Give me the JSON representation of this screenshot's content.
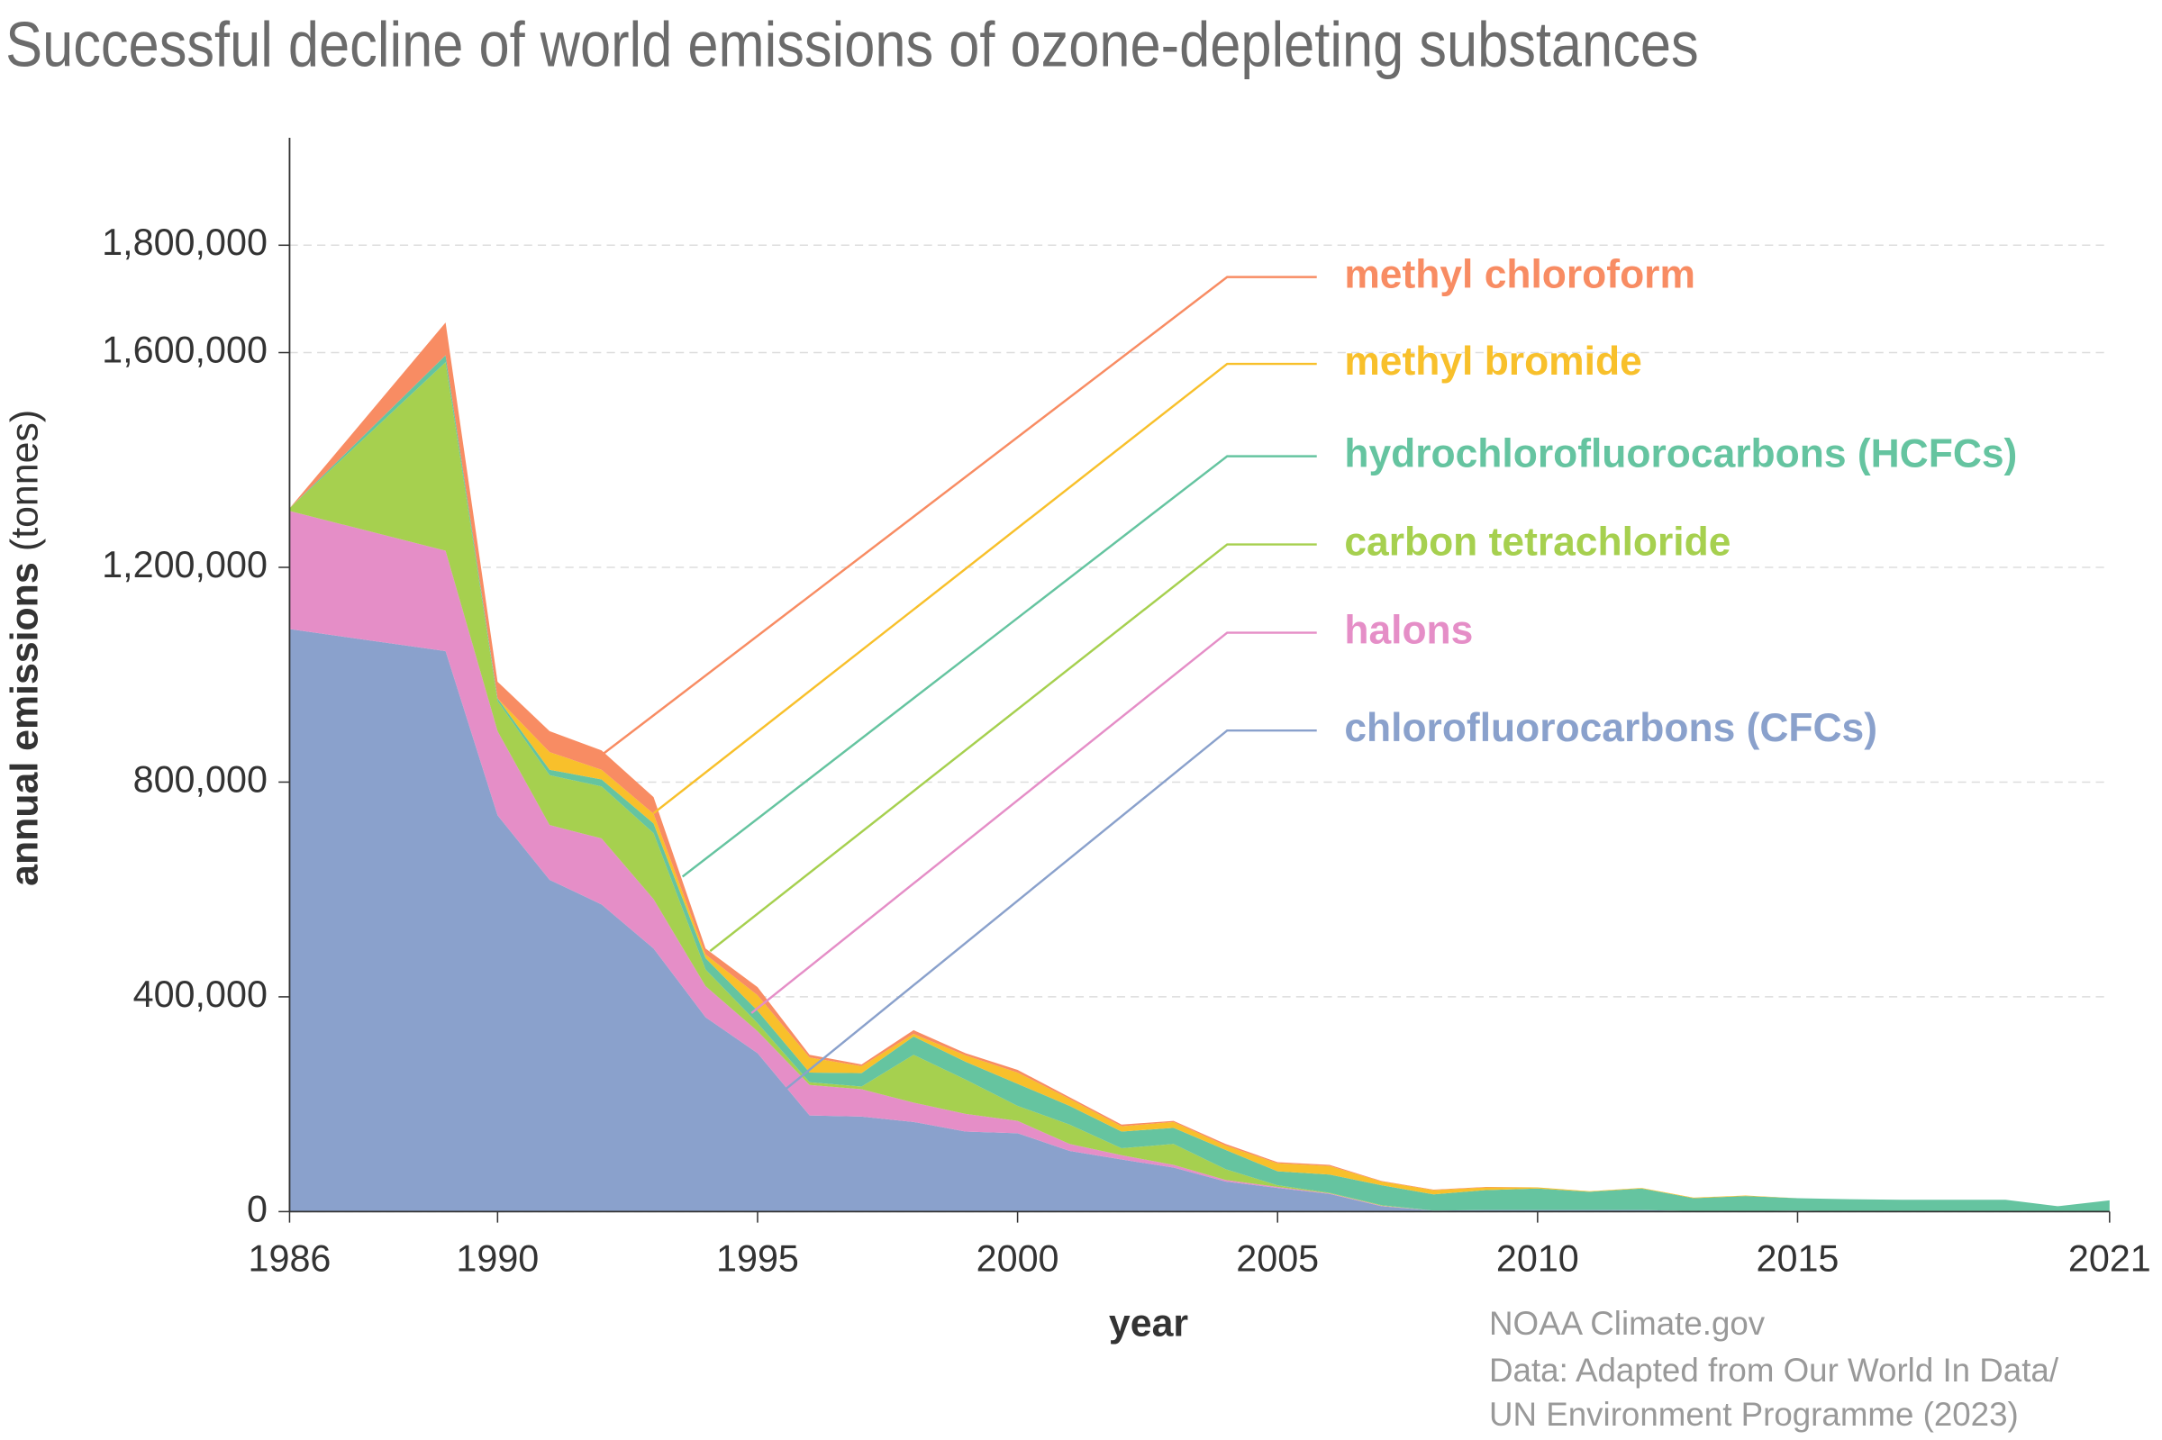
{
  "chart_data": {
    "type": "stacked_area",
    "title": "Successful decline of world emissions of ozone-depleting substances",
    "y_label": "annual emissions",
    "y_unit": "(tonnes)",
    "x_label": "year",
    "notes": [
      "NOAA Climate.gov",
      "Data: Adapted from Our World In Data/",
      "UN Environment Programme (2023)"
    ],
    "x": [
      1986,
      1989,
      1990,
      1991,
      1992,
      1993,
      1994,
      1995,
      1996,
      1997,
      1998,
      1999,
      2000,
      2001,
      2002,
      2003,
      2004,
      2005,
      2006,
      2007,
      2008,
      2009,
      2010,
      2011,
      2012,
      2013,
      2014,
      2015,
      2016,
      2017,
      2018,
      2019,
      2020,
      2021
    ],
    "xlim": [
      1986,
      2021
    ],
    "xticks": [
      1986,
      1990,
      1995,
      2000,
      2005,
      2010,
      2015,
      2021
    ],
    "ylim": [
      0,
      2000000
    ],
    "yticks": [
      {
        "value": 0,
        "label": "0"
      },
      {
        "value": 400000,
        "label": "400,000"
      },
      {
        "value": 800000,
        "label": "800,000"
      },
      {
        "value": 1200000,
        "label": "1,200,000"
      },
      {
        "value": 1600000,
        "label": "1,600,000"
      },
      {
        "value": 1800000,
        "label": "1,800,000"
      }
    ],
    "grid": true,
    "series": [
      {
        "name": "chlorofluorocarbons (CFCs)",
        "color": "#8aa1cc",
        "values": [
          1085000,
          1044000,
          738000,
          618000,
          572000,
          490000,
          362000,
          295000,
          179000,
          177000,
          167000,
          149000,
          146000,
          113000,
          97000,
          82000,
          56000,
          44000,
          33000,
          10000,
          2000,
          3000,
          3000,
          3000,
          3000,
          1000,
          1000,
          2000,
          1000,
          1000,
          1000,
          1000,
          1000,
          1000
        ]
      },
      {
        "name": "halons",
        "color": "#e58ec7",
        "values": [
          220000,
          187000,
          157000,
          102000,
          123000,
          92000,
          58000,
          41000,
          57000,
          51000,
          36000,
          33000,
          23000,
          13000,
          8000,
          5000,
          3000,
          2000,
          1000,
          1000,
          0,
          0,
          0,
          0,
          0,
          0,
          0,
          0,
          0,
          0,
          0,
          0,
          0,
          0
        ]
      },
      {
        "name": "carbon tetrachloride",
        "color": "#a6d04f",
        "values": [
          5000,
          351000,
          56000,
          93000,
          97000,
          123000,
          31000,
          15000,
          5000,
          5000,
          89000,
          64000,
          28000,
          36000,
          13000,
          39000,
          20000,
          3000,
          1000,
          1000,
          0,
          0,
          0,
          0,
          0,
          0,
          0,
          0,
          0,
          0,
          0,
          0,
          0,
          0
        ]
      },
      {
        "name": "hydrochlorofluorocarbons (HCFCs)",
        "color": "#65c4a0",
        "values": [
          0,
          13000,
          5000,
          10000,
          13000,
          18000,
          21000,
          23000,
          18000,
          25000,
          34000,
          33000,
          41000,
          35000,
          31000,
          30000,
          36000,
          26000,
          34000,
          37000,
          30000,
          37000,
          40000,
          34000,
          40000,
          24000,
          28000,
          23000,
          22000,
          21000,
          21000,
          21000,
          9000,
          20000
        ]
      },
      {
        "name": "methyl bromide",
        "color": "#f8c02b",
        "values": [
          0,
          0,
          0,
          33000,
          18000,
          18000,
          7000,
          29000,
          28000,
          13000,
          5000,
          12000,
          21000,
          13000,
          10000,
          11000,
          8000,
          15000,
          16000,
          7000,
          8000,
          5000,
          2000,
          1000,
          1000,
          1000,
          1000,
          0,
          0,
          0,
          0,
          0,
          0,
          0
        ]
      },
      {
        "name": "methyl chloroform",
        "color": "#f88c63",
        "values": [
          0,
          61000,
          31000,
          39000,
          36000,
          31000,
          11000,
          15000,
          5000,
          3000,
          7000,
          4000,
          5000,
          3000,
          3000,
          2000,
          3000,
          2000,
          2000,
          1000,
          1000,
          1000,
          0,
          0,
          0,
          0,
          0,
          0,
          0,
          0,
          0,
          0,
          0,
          0
        ]
      }
    ]
  }
}
